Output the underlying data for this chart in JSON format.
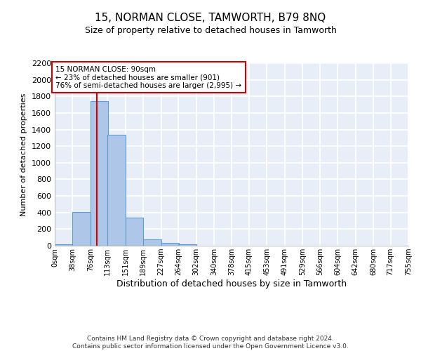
{
  "title": "15, NORMAN CLOSE, TAMWORTH, B79 8NQ",
  "subtitle": "Size of property relative to detached houses in Tamworth",
  "xlabel": "Distribution of detached houses by size in Tamworth",
  "ylabel": "Number of detached properties",
  "bin_edges": [
    0,
    38,
    76,
    113,
    151,
    189,
    227,
    264,
    302,
    340,
    378,
    415,
    453,
    491,
    529,
    566,
    604,
    642,
    680,
    717,
    755
  ],
  "bar_heights": [
    15,
    410,
    1740,
    1340,
    340,
    75,
    30,
    15,
    0,
    0,
    0,
    0,
    0,
    0,
    0,
    0,
    0,
    0,
    0,
    0
  ],
  "bar_color": "#aec6e8",
  "bar_edgecolor": "#5a9fd4",
  "ylim": [
    0,
    2200
  ],
  "yticks": [
    0,
    200,
    400,
    600,
    800,
    1000,
    1200,
    1400,
    1600,
    1800,
    2000,
    2200
  ],
  "property_size": 90,
  "property_line_color": "#cc0000",
  "annotation_text": "15 NORMAN CLOSE: 90sqm\n← 23% of detached houses are smaller (901)\n76% of semi-detached houses are larger (2,995) →",
  "annotation_box_color": "#ffffff",
  "annotation_box_edgecolor": "#cc0000",
  "background_color": "#e8eef8",
  "grid_color": "#ffffff",
  "footer_text": "Contains HM Land Registry data © Crown copyright and database right 2024.\nContains public sector information licensed under the Open Government Licence v3.0.",
  "tick_labels": [
    "0sqm",
    "38sqm",
    "76sqm",
    "113sqm",
    "151sqm",
    "189sqm",
    "227sqm",
    "264sqm",
    "302sqm",
    "340sqm",
    "378sqm",
    "415sqm",
    "453sqm",
    "491sqm",
    "529sqm",
    "566sqm",
    "604sqm",
    "642sqm",
    "680sqm",
    "717sqm",
    "755sqm"
  ],
  "title_fontsize": 11,
  "subtitle_fontsize": 9,
  "ylabel_fontsize": 8,
  "xlabel_fontsize": 9,
  "ytick_fontsize": 8,
  "xtick_fontsize": 7,
  "annotation_fontsize": 7.5,
  "footer_fontsize": 6.5
}
